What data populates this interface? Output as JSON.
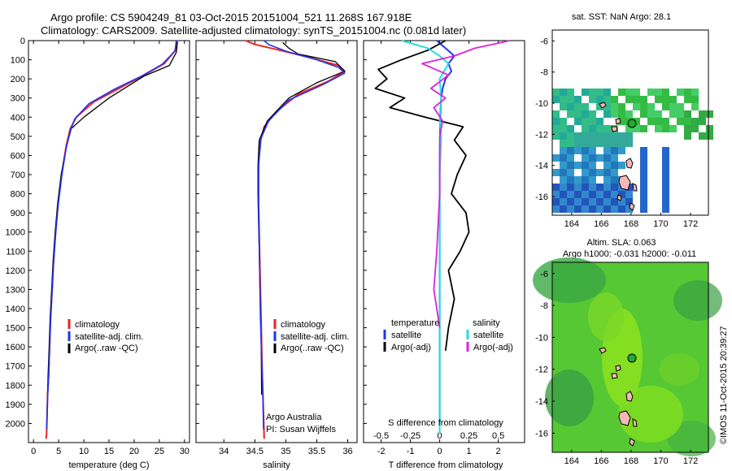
{
  "title_line1": "Argo profile: CS 5904249_81 03-Oct-2015 20151004_521 11.268S 167.918E",
  "title_line2": "Climatology: CARS2009. Satellite-adjusted climatology: synTS_20151004.nc (0.081d later)",
  "credit": "Argo Australia",
  "pi": "PI: Susan Wijffels",
  "stamp": "©IMOS 11-Oct-2015 20:39:27",
  "colors": {
    "climatology": "#ee2222",
    "satellite": "#2233ee",
    "argo": "#000000",
    "sal_satellite": "#22dddd",
    "sal_argo": "#dd22dd",
    "argo_marker": "#22aa33"
  },
  "chart_data": [
    {
      "type": "line",
      "panel": "temperature",
      "xlabel": "temperature (deg C)",
      "ylim": [
        2100,
        0
      ],
      "xlim": [
        -1,
        31
      ],
      "yticks": [
        "0",
        "100",
        "200",
        "300",
        "400",
        "500",
        "600",
        "700",
        "800",
        "900",
        "1000",
        "1100",
        "1200",
        "1300",
        "1400",
        "1500",
        "1600",
        "1700",
        "1800",
        "1900",
        "2000"
      ],
      "xticks": [
        "0",
        "5",
        "10",
        "15",
        "20",
        "25",
        "30"
      ],
      "legend": [
        "climatology",
        "satellite-adj. clim.",
        "Argo(..raw -QC)"
      ],
      "series": [
        {
          "name": "climatology",
          "x": [
            28.4,
            28.2,
            26,
            22,
            17,
            12,
            8.5,
            7.3,
            6.5,
            5.6,
            4.9,
            4.4,
            4,
            3.7,
            3.4,
            3.2,
            3,
            2.8,
            2.7,
            2.6,
            2.5
          ],
          "y": [
            0,
            50,
            120,
            180,
            250,
            320,
            400,
            460,
            550,
            700,
            850,
            1000,
            1150,
            1300,
            1450,
            1600,
            1750,
            1850,
            1950,
            2050,
            2080
          ]
        },
        {
          "name": "satellite-adj. clim.",
          "x": [
            28.4,
            28.1,
            25.5,
            21.5,
            16,
            11,
            8.2,
            7.3,
            6.5,
            5.6,
            4.9,
            4.4,
            4,
            3.7,
            3.4,
            3.2,
            3,
            2.8,
            2.7,
            2.6
          ],
          "y": [
            0,
            55,
            125,
            185,
            255,
            330,
            410,
            470,
            560,
            710,
            860,
            1010,
            1160,
            1310,
            1460,
            1610,
            1760,
            1860,
            1960,
            2030
          ]
        },
        {
          "name": "Argo(..raw -QC)",
          "x": [
            28.6,
            28.4,
            27,
            22,
            15,
            10,
            7.5,
            6.6,
            5.5,
            4.8,
            4.3,
            3.9,
            3.6,
            3.3,
            3.1,
            2.9,
            2.8
          ],
          "y": [
            5,
            60,
            130,
            185,
            300,
            400,
            460,
            550,
            700,
            850,
            1000,
            1150,
            1300,
            1450,
            1600,
            1750,
            1850
          ]
        }
      ]
    },
    {
      "type": "line",
      "panel": "salinity",
      "xlabel": "salinity",
      "ylim": [
        2100,
        0
      ],
      "xlim": [
        33.55,
        36.15
      ],
      "xticks": [
        "34",
        "34.5",
        "35",
        "35.5",
        "36"
      ],
      "legend": [
        "climatology",
        "satellite-adj. clim.",
        "Argo(..raw -QC)"
      ],
      "series": [
        {
          "name": "climatology",
          "x": [
            34.35,
            34.5,
            34.9,
            35.4,
            35.85,
            35.95,
            35.7,
            35.2,
            34.85,
            34.65,
            34.57,
            34.56,
            34.56,
            34.57,
            34.58,
            34.59,
            34.6,
            34.61,
            34.62,
            34.64,
            34.65
          ],
          "y": [
            0,
            20,
            50,
            90,
            130,
            160,
            210,
            280,
            370,
            450,
            550,
            700,
            850,
            1000,
            1150,
            1300,
            1450,
            1600,
            1750,
            1950,
            2080
          ]
        },
        {
          "name": "satellite-adj. clim.",
          "x": [
            34.65,
            34.72,
            35,
            35.5,
            35.85,
            35.95,
            35.6,
            35.05,
            34.72,
            34.6,
            34.56,
            34.56,
            34.57,
            34.58,
            34.59,
            34.61,
            34.63,
            34.64
          ],
          "y": [
            0,
            20,
            55,
            100,
            140,
            170,
            230,
            310,
            420,
            510,
            650,
            850,
            1050,
            1250,
            1450,
            1650,
            1850,
            2030
          ]
        },
        {
          "name": "Argo(..raw -QC)",
          "x": [
            34.95,
            35.05,
            35.2,
            35.8,
            35.95,
            35.5,
            35.05,
            34.7,
            34.57,
            34.55,
            34.55,
            34.56,
            34.57,
            34.58,
            34.59,
            34.6,
            34.61
          ],
          "y": [
            10,
            40,
            70,
            110,
            160,
            220,
            300,
            420,
            520,
            650,
            800,
            950,
            1100,
            1250,
            1400,
            1550,
            1850
          ]
        }
      ]
    },
    {
      "type": "line",
      "panel": "difference",
      "xlabel": "T difference from climatology",
      "xlabel2": "S difference from climatology",
      "xlim": [
        -2.6,
        2.9
      ],
      "ylim": [
        2100,
        0
      ],
      "xticks": [
        "-2",
        "-1",
        "0",
        "1",
        "2"
      ],
      "xticks2": [
        "-0.5",
        "-0.25",
        "0",
        "0.25",
        "0.5"
      ],
      "legend_title_t": "temperature",
      "legend_title_s": "salinity",
      "legend": [
        "satellite",
        "Argo(-adj)",
        "satellite",
        "Argo(-adj)"
      ],
      "series": [
        {
          "name": "satellite",
          "x": [
            -0.1,
            0.2,
            0.5,
            0.3,
            0.4,
            0.2,
            0.1,
            0.05,
            0.02,
            0.01,
            0,
            0,
            0,
            0,
            0
          ],
          "y": [
            0,
            40,
            80,
            120,
            160,
            200,
            250,
            300,
            400,
            500,
            700,
            1000,
            1400,
            1800,
            2000
          ]
        },
        {
          "name": "Argo(-adj)",
          "x": [
            0.2,
            -0.4,
            -1.3,
            -2.1,
            -1.8,
            -2.2,
            -1.2,
            -1.7,
            -0.5,
            0.8,
            0.5,
            0.9,
            0.6,
            0.4,
            0.9,
            1,
            0.7,
            0.3,
            0.5,
            0.3,
            0.2
          ],
          "y": [
            0,
            50,
            100,
            150,
            200,
            250,
            300,
            350,
            400,
            450,
            520,
            600,
            700,
            800,
            900,
            1000,
            1100,
            1200,
            1350,
            1500,
            1620
          ]
        },
        {
          "name": "satellite",
          "x": [
            -1.3,
            -0.4,
            0,
            0.3,
            0,
            0.05,
            0,
            0.05,
            0,
            0,
            0,
            0,
            0
          ],
          "y": [
            0,
            40,
            80,
            120,
            200,
            300,
            400,
            500,
            700,
            1000,
            1400,
            1800,
            2050
          ]
        },
        {
          "name": "Argo(-adj)",
          "x": [
            2.4,
            1.2,
            0.5,
            -0.6,
            0.3,
            -0.3,
            0.2,
            -0.2,
            0.1,
            0,
            0,
            -0.1,
            -0.2,
            -0.1,
            0
          ],
          "y": [
            0,
            40,
            80,
            120,
            180,
            250,
            300,
            350,
            420,
            500,
            800,
            1100,
            1300,
            1400,
            1500
          ]
        }
      ]
    },
    {
      "type": "heatmap",
      "panel": "sst_map",
      "title": "sat. SST: NaN Argo: 28.1",
      "xticks": [
        "164",
        "166",
        "168",
        "170",
        "172"
      ],
      "yticks": [
        "-6",
        "-8",
        "-10",
        "-12",
        "-14",
        "-16"
      ]
    },
    {
      "type": "heatmap",
      "panel": "sla_map",
      "title_line1": "Altim. SLA: 0.063",
      "title_line2": "Argo h1000: -0.031 h2000: -0.011",
      "xticks": [
        "164",
        "166",
        "168",
        "170",
        "172"
      ],
      "yticks": [
        "-6",
        "-8",
        "-10",
        "-12",
        "-14",
        "-16"
      ]
    }
  ]
}
